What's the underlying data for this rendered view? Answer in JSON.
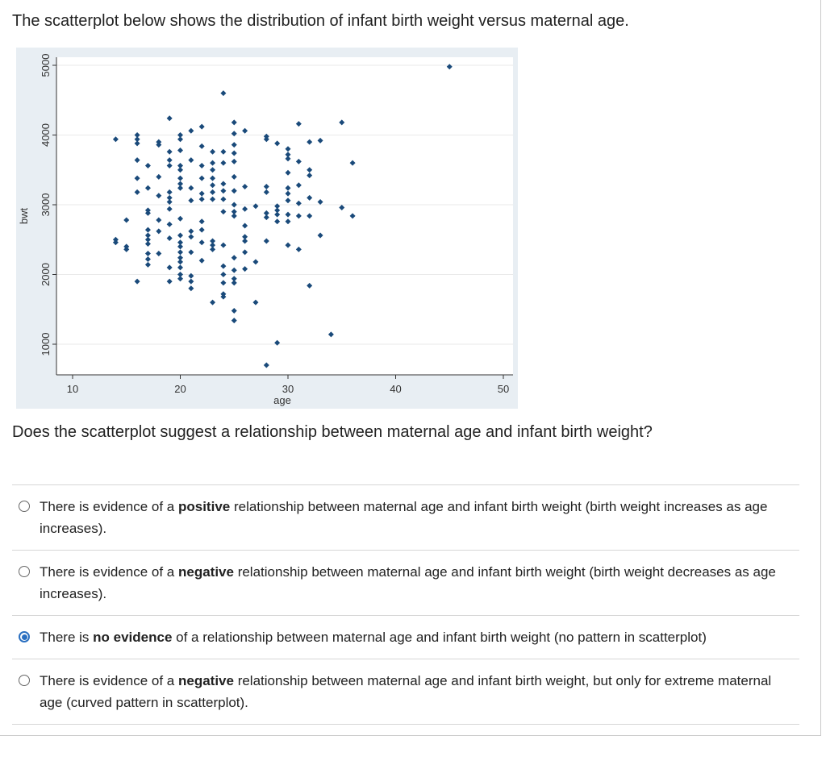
{
  "intro_text": "The scatterplot below shows the distribution of infant birth weight versus maternal age.",
  "question_text": "Does the scatterplot suggest a relationship between maternal age and infant birth weight?",
  "accent_color": "#2a6fc0",
  "chart_data": {
    "type": "scatter",
    "xlabel": "age",
    "ylabel": "bwt",
    "xlim": [
      10,
      50
    ],
    "ylim": [
      500,
      5000
    ],
    "xticks": [
      10,
      20,
      30,
      40,
      50
    ],
    "yticks": [
      1000,
      2000,
      3000,
      4000,
      5000
    ],
    "grid": true,
    "point_color": "#1a4a7a",
    "plot_background": "#e8eef3",
    "points": [
      [
        14,
        3940
      ],
      [
        14,
        2500
      ],
      [
        14,
        2460
      ],
      [
        15,
        2780
      ],
      [
        15,
        2400
      ],
      [
        15,
        2360
      ],
      [
        16,
        4000
      ],
      [
        16,
        3940
      ],
      [
        16,
        3880
      ],
      [
        16,
        3640
      ],
      [
        16,
        3380
      ],
      [
        16,
        3180
      ],
      [
        16,
        1900
      ],
      [
        17,
        3560
      ],
      [
        17,
        3240
      ],
      [
        17,
        2920
      ],
      [
        17,
        2880
      ],
      [
        17,
        2640
      ],
      [
        17,
        2560
      ],
      [
        17,
        2500
      ],
      [
        17,
        2440
      ],
      [
        17,
        2300
      ],
      [
        17,
        2220
      ],
      [
        17,
        2140
      ],
      [
        18,
        3900
      ],
      [
        18,
        3860
      ],
      [
        18,
        3400
      ],
      [
        18,
        3130
      ],
      [
        18,
        2780
      ],
      [
        18,
        2620
      ],
      [
        18,
        2300
      ],
      [
        19,
        4240
      ],
      [
        19,
        3760
      ],
      [
        19,
        3640
      ],
      [
        19,
        3560
      ],
      [
        19,
        3180
      ],
      [
        19,
        3100
      ],
      [
        19,
        3040
      ],
      [
        19,
        2940
      ],
      [
        19,
        2720
      ],
      [
        19,
        2520
      ],
      [
        19,
        2100
      ],
      [
        19,
        1900
      ],
      [
        20,
        4000
      ],
      [
        20,
        3940
      ],
      [
        20,
        3780
      ],
      [
        20,
        3560
      ],
      [
        20,
        3500
      ],
      [
        20,
        3380
      ],
      [
        20,
        3300
      ],
      [
        20,
        3240
      ],
      [
        20,
        2800
      ],
      [
        20,
        2560
      ],
      [
        20,
        2460
      ],
      [
        20,
        2400
      ],
      [
        20,
        2320
      ],
      [
        20,
        2240
      ],
      [
        20,
        2180
      ],
      [
        20,
        2100
      ],
      [
        20,
        2000
      ],
      [
        20,
        1940
      ],
      [
        21,
        4060
      ],
      [
        21,
        3640
      ],
      [
        21,
        3240
      ],
      [
        21,
        3060
      ],
      [
        21,
        2620
      ],
      [
        21,
        2540
      ],
      [
        21,
        2320
      ],
      [
        21,
        1980
      ],
      [
        21,
        1900
      ],
      [
        21,
        1800
      ],
      [
        22,
        4120
      ],
      [
        22,
        3840
      ],
      [
        22,
        3560
      ],
      [
        22,
        3380
      ],
      [
        22,
        3160
      ],
      [
        22,
        3080
      ],
      [
        22,
        2760
      ],
      [
        22,
        2640
      ],
      [
        22,
        2460
      ],
      [
        22,
        2200
      ],
      [
        23,
        3760
      ],
      [
        23,
        3600
      ],
      [
        23,
        3500
      ],
      [
        23,
        3380
      ],
      [
        23,
        3280
      ],
      [
        23,
        3180
      ],
      [
        23,
        3080
      ],
      [
        23,
        2480
      ],
      [
        23,
        2420
      ],
      [
        23,
        2360
      ],
      [
        23,
        1600
      ],
      [
        24,
        4600
      ],
      [
        24,
        3760
      ],
      [
        24,
        3600
      ],
      [
        24,
        3300
      ],
      [
        24,
        3200
      ],
      [
        24,
        3080
      ],
      [
        24,
        2900
      ],
      [
        24,
        2420
      ],
      [
        24,
        2120
      ],
      [
        24,
        2000
      ],
      [
        24,
        1880
      ],
      [
        24,
        1720
      ],
      [
        24,
        1680
      ],
      [
        25,
        4180
      ],
      [
        25,
        4020
      ],
      [
        25,
        3860
      ],
      [
        25,
        3740
      ],
      [
        25,
        3620
      ],
      [
        25,
        3400
      ],
      [
        25,
        3200
      ],
      [
        25,
        3000
      ],
      [
        25,
        2900
      ],
      [
        25,
        2840
      ],
      [
        25,
        2240
      ],
      [
        25,
        2060
      ],
      [
        25,
        1940
      ],
      [
        25,
        1880
      ],
      [
        25,
        1480
      ],
      [
        25,
        1340
      ],
      [
        26,
        4060
      ],
      [
        26,
        3260
      ],
      [
        26,
        2940
      ],
      [
        26,
        2700
      ],
      [
        26,
        2540
      ],
      [
        26,
        2480
      ],
      [
        26,
        2320
      ],
      [
        26,
        2080
      ],
      [
        27,
        2980
      ],
      [
        27,
        2180
      ],
      [
        27,
        1600
      ],
      [
        28,
        3980
      ],
      [
        28,
        3940
      ],
      [
        28,
        3260
      ],
      [
        28,
        3180
      ],
      [
        28,
        2880
      ],
      [
        28,
        2820
      ],
      [
        28,
        2480
      ],
      [
        28,
        700
      ],
      [
        29,
        3880
      ],
      [
        29,
        2980
      ],
      [
        29,
        2920
      ],
      [
        29,
        2860
      ],
      [
        29,
        2760
      ],
      [
        29,
        1020
      ],
      [
        30,
        3800
      ],
      [
        30,
        3720
      ],
      [
        30,
        3660
      ],
      [
        30,
        3460
      ],
      [
        30,
        3240
      ],
      [
        30,
        3160
      ],
      [
        30,
        3060
      ],
      [
        30,
        2860
      ],
      [
        30,
        2760
      ],
      [
        30,
        2420
      ],
      [
        31,
        4160
      ],
      [
        31,
        3620
      ],
      [
        31,
        3280
      ],
      [
        31,
        3020
      ],
      [
        31,
        2840
      ],
      [
        31,
        2360
      ],
      [
        32,
        3900
      ],
      [
        32,
        3500
      ],
      [
        32,
        3420
      ],
      [
        32,
        3100
      ],
      [
        32,
        2840
      ],
      [
        32,
        1840
      ],
      [
        33,
        3920
      ],
      [
        33,
        3040
      ],
      [
        33,
        2560
      ],
      [
        34,
        1140
      ],
      [
        35,
        4180
      ],
      [
        35,
        2960
      ],
      [
        36,
        3600
      ],
      [
        36,
        2840
      ],
      [
        45,
        4980
      ]
    ]
  },
  "options": [
    {
      "pre": "There is evidence of a ",
      "bold": "positive",
      "post": " relationship between maternal age and infant birth weight (birth weight increases as age increases).",
      "selected": false
    },
    {
      "pre": "There is evidence of a ",
      "bold": "negative",
      "post": " relationship between maternal age and infant birth weight (birth weight decreases as age increases).",
      "selected": false
    },
    {
      "pre": "There is ",
      "bold": "no evidence",
      "post": " of a relationship between maternal age and infant birth weight (no pattern in scatterplot)",
      "selected": true
    },
    {
      "pre": "There is evidence of a ",
      "bold": "negative",
      "post": " relationship between maternal age and infant birth weight, but only for extreme maternal age (curved pattern in scatterplot).",
      "selected": false
    }
  ]
}
